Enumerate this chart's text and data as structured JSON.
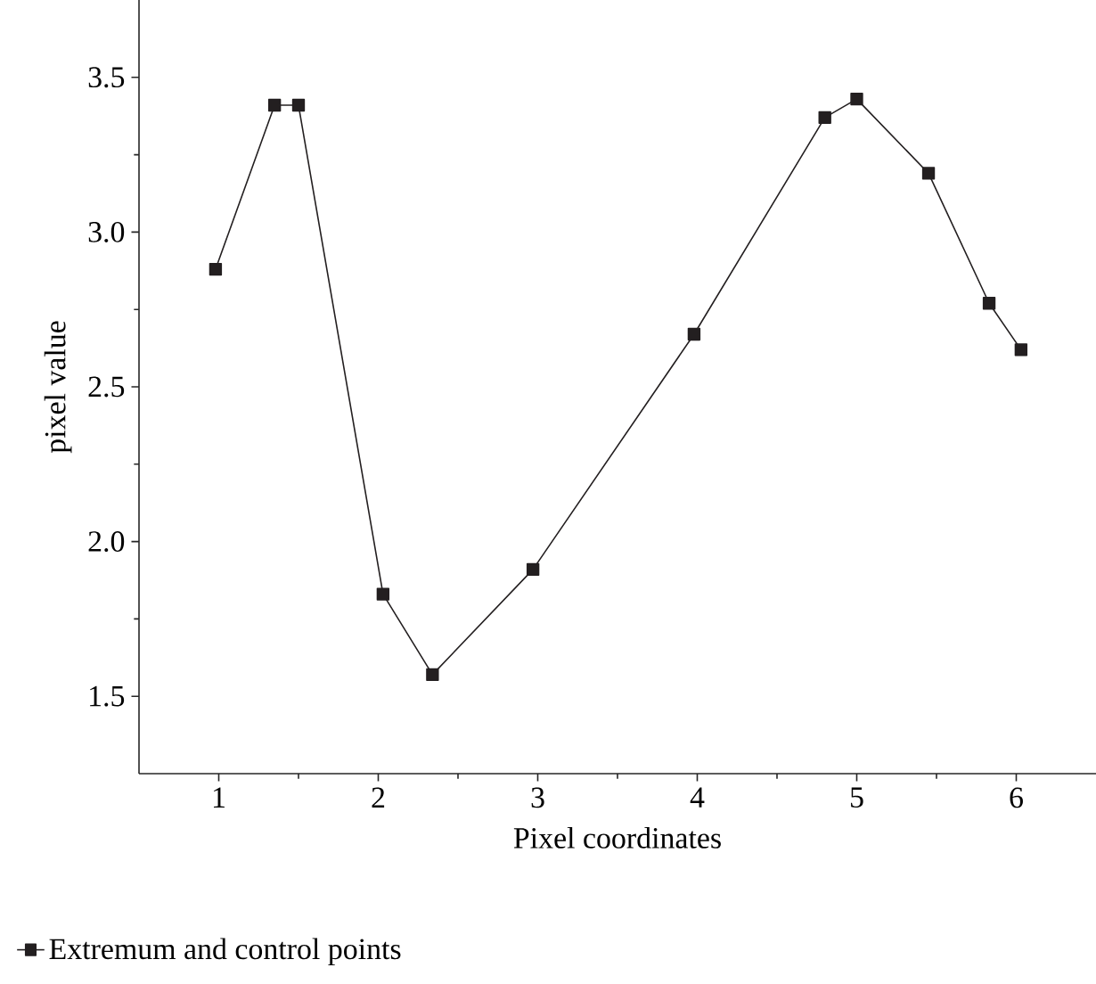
{
  "chart_data": {
    "type": "line",
    "xlabel": "Pixel coordinates",
    "ylabel": "pixel value",
    "xlim": [
      0.5,
      6.5
    ],
    "xticks": [
      1,
      2,
      3,
      4,
      5,
      6
    ],
    "ylim": [
      1.25,
      3.75
    ],
    "yticks": [
      1.5,
      {
        "value": 2,
        "label": "2.0"
      },
      2.5,
      {
        "value": 3,
        "label": "3.0"
      },
      3.5
    ],
    "marker": "square",
    "line_style": "solid",
    "legend": "bottom left",
    "grid": false,
    "series": [
      {
        "name": "Extremum and control points",
        "color": "#231f20",
        "x": [
          0.98,
          1.35,
          1.5,
          2.03,
          2.34,
          2.97,
          3.98,
          4.8,
          5.0,
          5.45,
          5.83,
          6.03
        ],
        "values": [
          2.88,
          3.41,
          3.41,
          1.83,
          1.57,
          1.91,
          2.67,
          3.37,
          3.43,
          3.19,
          2.77,
          2.62
        ]
      }
    ]
  }
}
